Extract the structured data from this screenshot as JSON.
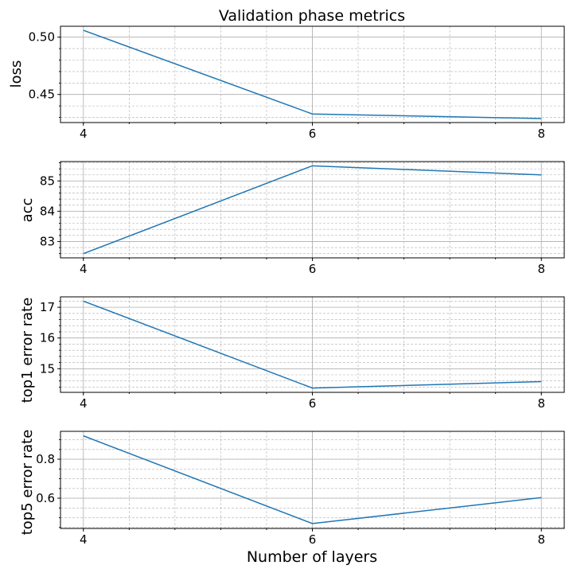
{
  "figure": {
    "title": "Validation phase metrics",
    "xlabel": "Number of layers"
  },
  "colors": {
    "series": "#1f77b4",
    "grid": "#b0b0b0"
  },
  "chart_data": [
    {
      "type": "line",
      "title": "Validation phase metrics",
      "xlabel": "",
      "ylabel": "loss",
      "x": [
        4,
        6,
        8
      ],
      "series": [
        {
          "values": [
            0.506,
            0.433,
            0.429
          ]
        }
      ],
      "xlim": [
        3.8,
        8.2
      ],
      "ylim": [
        0.4255,
        0.5095
      ],
      "xticks": [
        "4",
        "6",
        "8"
      ],
      "x_minor_step": 0.4,
      "yticks": [
        0.45,
        0.5
      ],
      "ytick_labels": [
        "0.45",
        "0.50"
      ],
      "y_minor_step": 0.01,
      "grid": true
    },
    {
      "type": "line",
      "xlabel": "",
      "ylabel": "acc",
      "x": [
        4,
        6,
        8
      ],
      "series": [
        {
          "values": [
            82.6,
            85.5,
            85.2
          ]
        }
      ],
      "xlim": [
        3.8,
        8.2
      ],
      "ylim": [
        82.46,
        85.64
      ],
      "xticks": [
        "4",
        "6",
        "8"
      ],
      "x_minor_step": 0.4,
      "yticks": [
        83,
        84,
        85
      ],
      "ytick_labels": [
        "83",
        "84",
        "85"
      ],
      "y_minor_step": 0.2,
      "grid": true
    },
    {
      "type": "line",
      "xlabel": "",
      "ylabel": "top1 error rate",
      "x": [
        4,
        6,
        8
      ],
      "series": [
        {
          "values": [
            17.2,
            14.37,
            14.58
          ]
        }
      ],
      "xlim": [
        3.8,
        8.2
      ],
      "ylim": [
        14.23,
        17.34
      ],
      "xticks": [
        "4",
        "6",
        "8"
      ],
      "x_minor_step": 0.4,
      "yticks": [
        15,
        16,
        17
      ],
      "ytick_labels": [
        "15",
        "16",
        "17"
      ],
      "y_minor_step": 0.2,
      "grid": true
    },
    {
      "type": "line",
      "xlabel": "Number of layers",
      "ylabel": "top5 error rate",
      "x": [
        4,
        6,
        8
      ],
      "series": [
        {
          "values": [
            0.92,
            0.47,
            0.603
          ]
        }
      ],
      "xlim": [
        3.8,
        8.2
      ],
      "ylim": [
        0.445,
        0.943
      ],
      "xticks": [
        "4",
        "6",
        "8"
      ],
      "x_minor_step": 0.4,
      "yticks": [
        0.6,
        0.8
      ],
      "ytick_labels": [
        "0.6",
        "0.8"
      ],
      "y_minor_step": 0.05,
      "grid": true
    }
  ]
}
